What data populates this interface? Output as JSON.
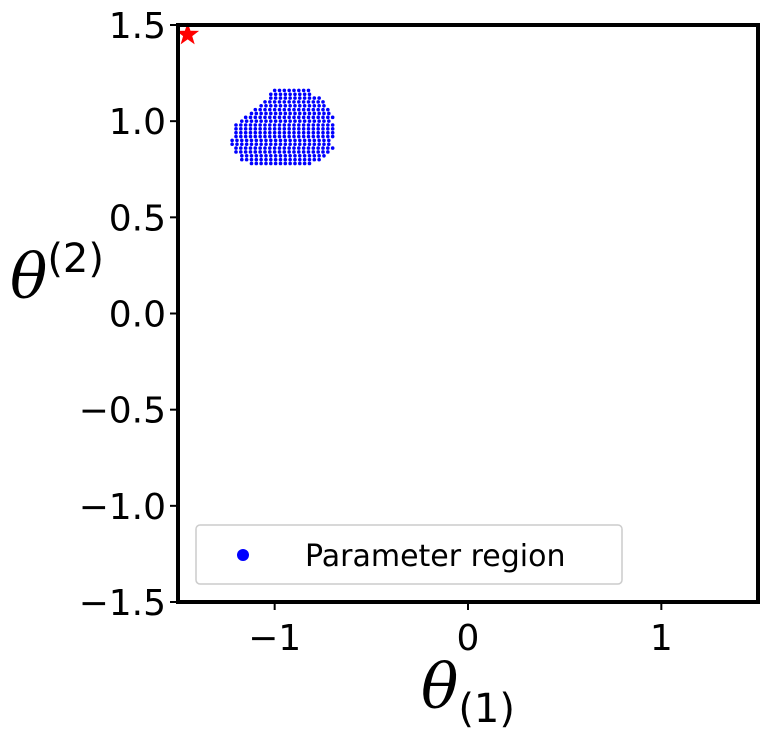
{
  "chart_data": {
    "type": "scatter",
    "title": "",
    "xlabel": "θ",
    "xlabel_sub": "(1)",
    "ylabel": "θ",
    "ylabel_sup": "(2)",
    "xlim": [
      -1.5,
      1.5
    ],
    "ylim": [
      -1.5,
      1.5
    ],
    "xticks": [
      -1,
      0,
      1
    ],
    "xtick_labels": [
      "−1",
      "0",
      "1"
    ],
    "yticks": [
      -1.5,
      -1.0,
      -0.5,
      0.0,
      0.5,
      1.0,
      1.5
    ],
    "ytick_labels": [
      "−1.5",
      "−1.0",
      "−0.5",
      "0.0",
      "0.5",
      "1.0",
      "1.5"
    ],
    "grid": false,
    "legend_position": "lower-left",
    "series": [
      {
        "name": "Parameter region",
        "color": "#0000ff",
        "marker": "circle",
        "region": {
          "x_step": 0.025,
          "y_step": 0.02,
          "rows": [
            {
              "y": 0.78,
              "x_min": -1.12,
              "x_max": -0.82
            },
            {
              "y": 0.8,
              "x_min": -1.17,
              "x_max": -0.77
            },
            {
              "y": 0.82,
              "x_min": -1.17,
              "x_max": -0.74
            },
            {
              "y": 0.84,
              "x_min": -1.2,
              "x_max": -0.72
            },
            {
              "y": 0.86,
              "x_min": -1.2,
              "x_max": -0.7
            },
            {
              "y": 0.88,
              "x_min": -1.22,
              "x_max": -0.7
            },
            {
              "y": 0.9,
              "x_min": -1.22,
              "x_max": -0.7
            },
            {
              "y": 0.92,
              "x_min": -1.2,
              "x_max": -0.7
            },
            {
              "y": 0.94,
              "x_min": -1.2,
              "x_max": -0.7
            },
            {
              "y": 0.96,
              "x_min": -1.2,
              "x_max": -0.7
            },
            {
              "y": 0.98,
              "x_min": -1.2,
              "x_max": -0.7
            },
            {
              "y": 1.0,
              "x_min": -1.17,
              "x_max": -0.7
            },
            {
              "y": 1.02,
              "x_min": -1.15,
              "x_max": -0.7
            },
            {
              "y": 1.04,
              "x_min": -1.12,
              "x_max": -0.7
            },
            {
              "y": 1.06,
              "x_min": -1.1,
              "x_max": -0.72
            },
            {
              "y": 1.08,
              "x_min": -1.07,
              "x_max": -0.74
            },
            {
              "y": 1.1,
              "x_min": -1.05,
              "x_max": -0.74
            },
            {
              "y": 1.12,
              "x_min": -1.02,
              "x_max": -0.77
            },
            {
              "y": 1.14,
              "x_min": -1.02,
              "x_max": -0.8
            },
            {
              "y": 1.16,
              "x_min": -1.0,
              "x_max": -0.82
            }
          ]
        }
      },
      {
        "name": "",
        "color": "#ff0000",
        "marker": "star",
        "points": [
          {
            "x": -1.45,
            "y": 1.45
          }
        ]
      }
    ]
  }
}
